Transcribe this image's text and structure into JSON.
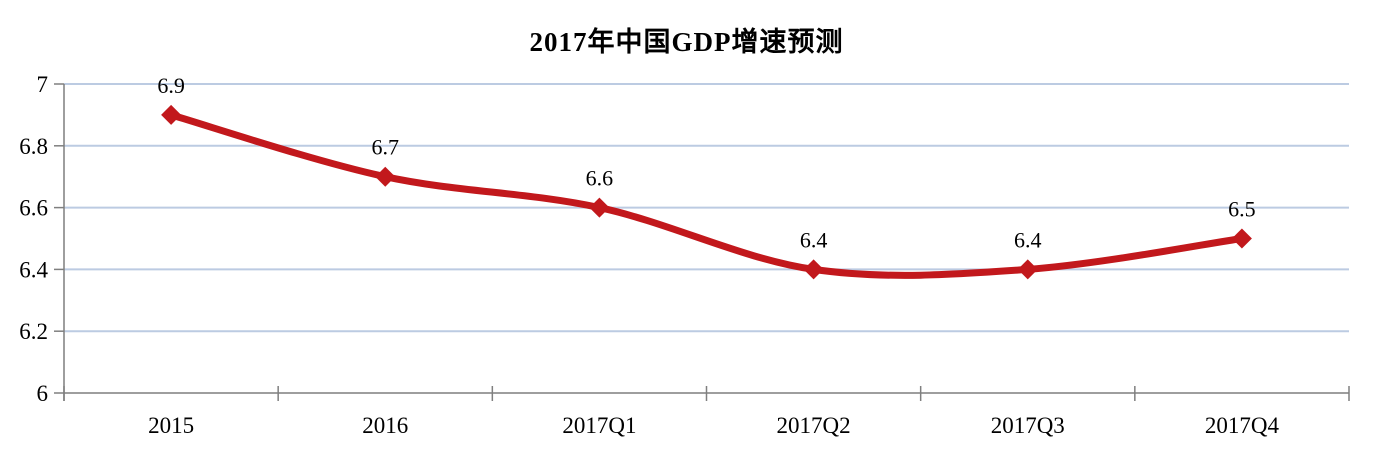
{
  "chart_data": {
    "type": "line",
    "title": "2017年中国GDP增速预测",
    "categories": [
      "2015",
      "2016",
      "2017Q1",
      "2017Q2",
      "2017Q3",
      "2017Q4"
    ],
    "values": [
      6.9,
      6.7,
      6.6,
      6.4,
      6.4,
      6.5
    ],
    "data_labels": [
      "6.9",
      "6.7",
      "6.6",
      "6.4",
      "6.4",
      "6.5"
    ],
    "xlabel": "",
    "ylabel": "",
    "ylim": [
      6,
      7
    ],
    "y_ticks": [
      6,
      6.2,
      6.4,
      6.6,
      6.8,
      7
    ],
    "y_tick_labels": [
      "6",
      "6.2",
      "6.4",
      "6.6",
      "6.8",
      "7"
    ],
    "grid": true,
    "legend": "none",
    "smooth": true,
    "marker": "diamond",
    "colors": {
      "series_line": "#c2181c",
      "marker_fill": "#c2181c",
      "gridline": "#bccbe2",
      "axis_line": "#7f7f7f",
      "text": "#000000",
      "background": "#ffffff"
    }
  }
}
